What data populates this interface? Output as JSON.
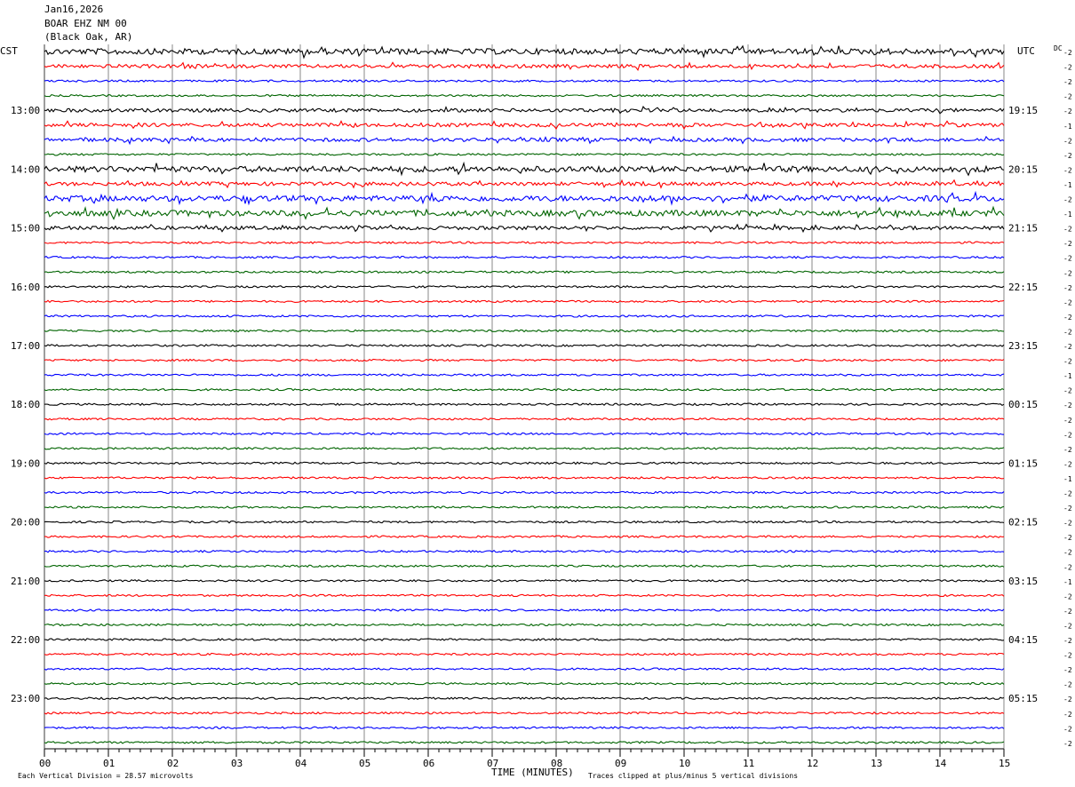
{
  "header": {
    "date": "Jan16,2026",
    "station": "BOAR EHZ NM 00",
    "location": "(Black Oak, AR)"
  },
  "left_zone_label": "CST",
  "right_zone_label": "UTC",
  "dc_label": "DC",
  "footer": {
    "scale_note": "Each Vertical Division =   28.57 microvolts",
    "xlabel": "TIME (MINUTES)",
    "clip_note": "Traces clipped at plus/minus 5 vertical divisions"
  },
  "colors": {
    "cycle": [
      "#000000",
      "#ff0000",
      "#0000ff",
      "#006400"
    ],
    "grid": "#000000"
  },
  "chart_data": {
    "type": "line",
    "title": "",
    "xlabel": "TIME (MINUTES)",
    "xlim": [
      0,
      15
    ],
    "x_ticks": [
      "00",
      "01",
      "02",
      "03",
      "04",
      "05",
      "06",
      "07",
      "08",
      "09",
      "10",
      "11",
      "12",
      "13",
      "14",
      "15"
    ],
    "trace_count": 48,
    "left_hour_labels": [
      "13:00",
      "14:00",
      "15:00",
      "16:00",
      "17:00",
      "18:00",
      "19:00",
      "20:00",
      "21:00",
      "22:00",
      "23:00"
    ],
    "right_hour_labels": [
      "19:15",
      "20:15",
      "21:15",
      "22:15",
      "23:15",
      "00:15",
      "01:15",
      "02:15",
      "03:15",
      "04:15",
      "05:15"
    ],
    "dc_offsets": [
      -2,
      -2,
      -2,
      -2,
      -2,
      -1,
      -2,
      -2,
      -2,
      -1,
      -2,
      -1,
      -2,
      -2,
      -2,
      -2,
      -2,
      -2,
      -2,
      -2,
      -2,
      -2,
      -1,
      -2,
      -2,
      -2,
      -2,
      -2,
      -2,
      -1,
      -2,
      -2,
      -2,
      -2,
      -2,
      -2,
      -1,
      -2,
      -2,
      -2,
      -2,
      -2,
      -2,
      -2,
      -2,
      -2,
      -2,
      -2
    ],
    "activity": [
      3,
      2,
      1,
      1,
      2,
      2,
      2,
      1,
      3,
      2,
      3,
      3,
      2,
      1,
      1,
      1,
      1,
      1,
      1,
      1,
      1,
      1,
      1,
      1,
      1,
      1,
      1,
      1,
      1,
      1,
      1,
      1,
      1,
      1,
      1,
      1,
      1,
      1,
      1,
      1,
      1,
      1,
      1,
      1,
      1,
      1,
      1,
      1
    ]
  }
}
